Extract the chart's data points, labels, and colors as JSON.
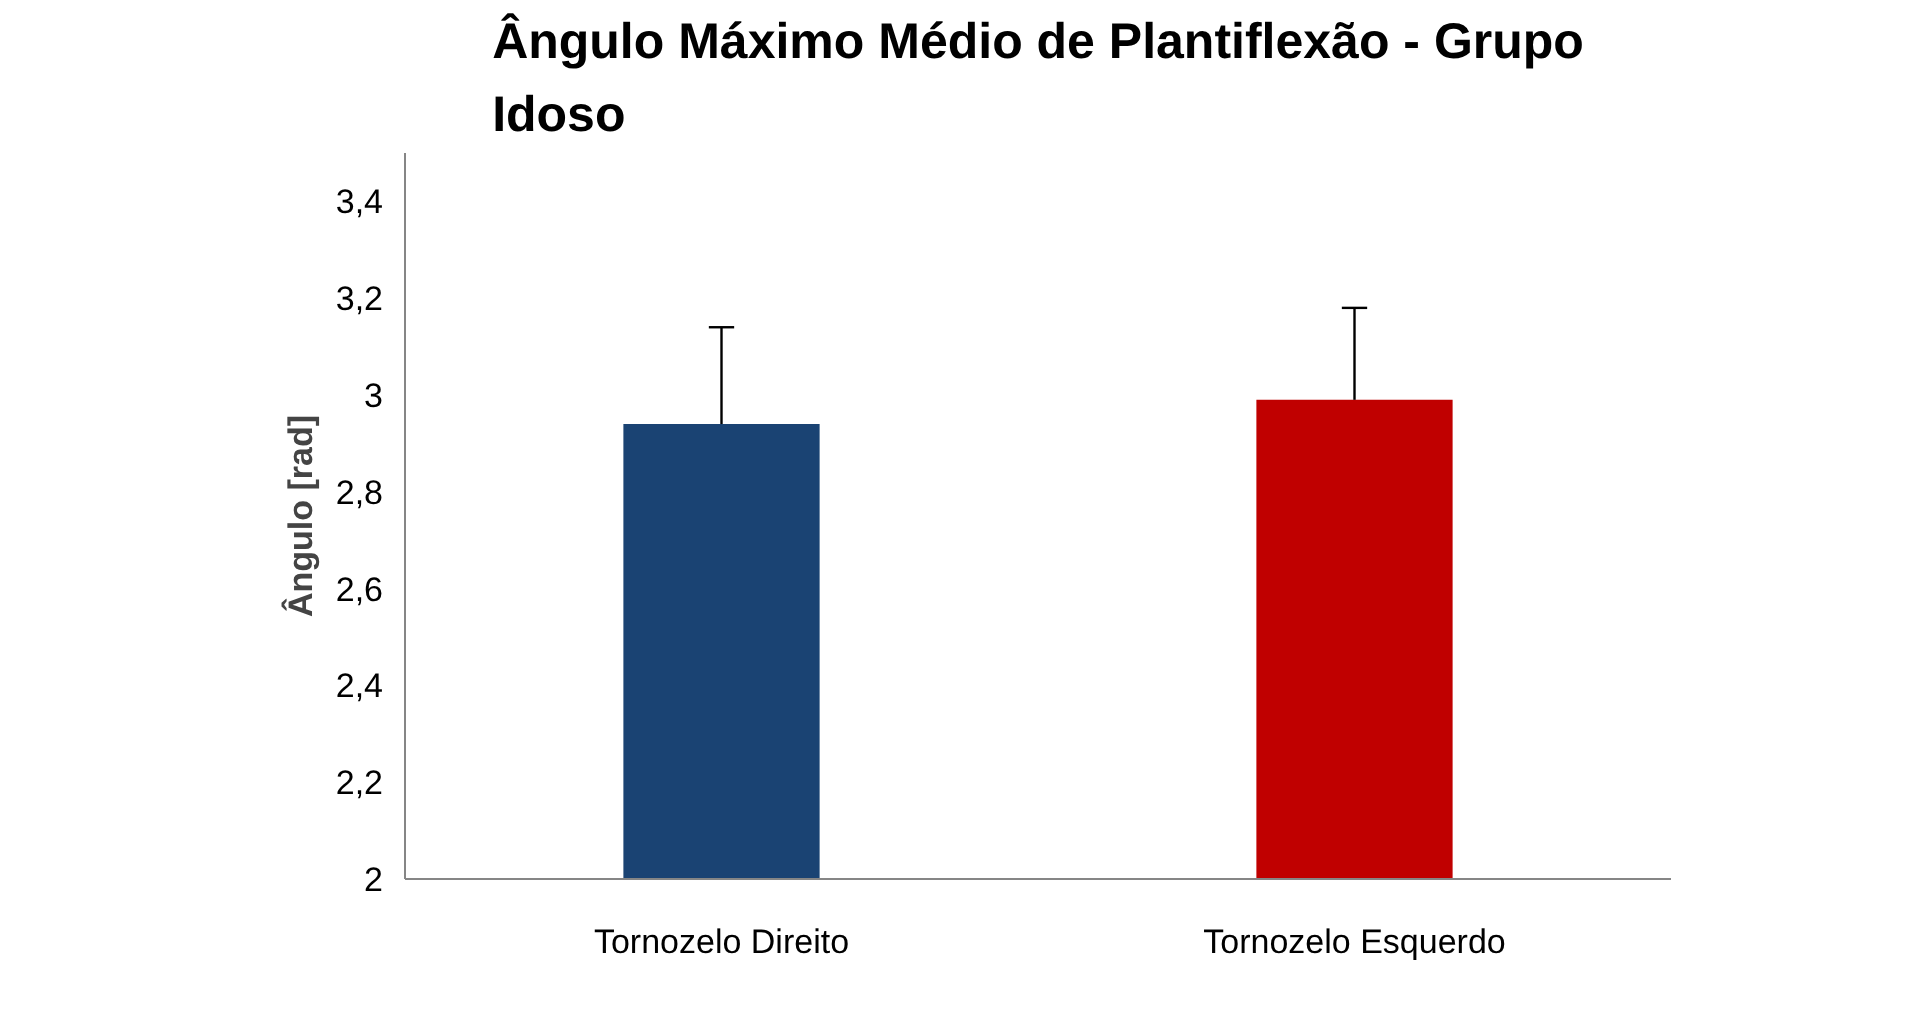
{
  "chart_data": {
    "type": "bar",
    "title": "Ângulo Máximo Médio de Plantiflexão - Grupo Idoso",
    "ylabel": "Ângulo [rad]",
    "categories": [
      "Tornozelo Direito",
      "Tornozelo Esquerdo"
    ],
    "values": [
      2.94,
      2.99
    ],
    "colors": [
      "#1a4373",
      "#c00000"
    ],
    "errors": [
      [
        2.94,
        3.14
      ],
      [
        2.99,
        3.18
      ]
    ],
    "ylim": [
      2,
      3.5
    ],
    "yticks": [
      2,
      {
        "value": 2.2,
        "label": "2,2"
      },
      {
        "value": 2.4,
        "label": "2,4"
      },
      {
        "value": 2.6,
        "label": "2,6"
      },
      {
        "value": 2.8,
        "label": "2,8"
      },
      3,
      {
        "value": 3.2,
        "label": "3,2"
      },
      {
        "value": 3.4,
        "label": "3,4"
      }
    ],
    "grid": false
  }
}
